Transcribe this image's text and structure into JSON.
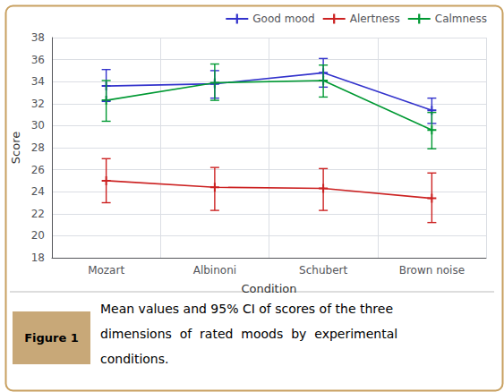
{
  "chart_data": {
    "type": "line",
    "categories": [
      "Mozart",
      "Albinoni",
      "Schubert",
      "Brown noise"
    ],
    "series": [
      {
        "name": "Good mood",
        "color": "#3333cc",
        "values": [
          33.6,
          33.8,
          34.8,
          31.4
        ],
        "ci_lower": [
          32.2,
          32.5,
          33.5,
          30.2
        ],
        "ci_upper": [
          35.1,
          35.0,
          36.1,
          32.5
        ]
      },
      {
        "name": "Alertness",
        "color": "#cc2222",
        "values": [
          25.0,
          24.4,
          24.3,
          23.4
        ],
        "ci_lower": [
          23.0,
          22.3,
          22.3,
          21.2
        ],
        "ci_upper": [
          27.0,
          26.2,
          26.1,
          25.7
        ]
      },
      {
        "name": "Calmness",
        "color": "#009933",
        "values": [
          32.3,
          33.9,
          34.1,
          29.6
        ],
        "ci_lower": [
          30.4,
          32.3,
          32.6,
          27.9
        ],
        "ci_upper": [
          34.1,
          35.6,
          35.5,
          31.2
        ]
      }
    ],
    "xlabel": "Condition",
    "ylabel": "Score",
    "ylim": [
      18,
      38
    ],
    "yticks": [
      18,
      20,
      22,
      24,
      26,
      28,
      30,
      32,
      34,
      36,
      38
    ],
    "grid": true,
    "legend": "upper right",
    "marker": "plus",
    "annotations": [
      "Figure 1",
      "Mean values and 95% CI of scores of the three",
      "dimensions  of  rated  moods  by  experimental",
      "conditions."
    ]
  }
}
